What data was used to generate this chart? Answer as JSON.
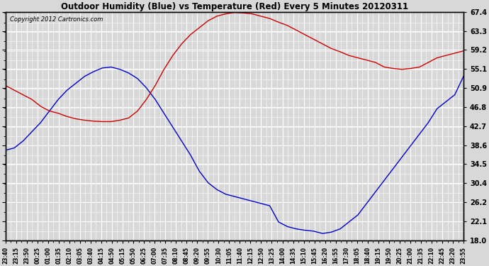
{
  "title": "Outdoor Humidity (Blue) vs Temperature (Red) Every 5 Minutes 20120311",
  "copyright": "Copyright 2012 Cartronics.com",
  "y_ticks": [
    18.0,
    22.1,
    26.2,
    30.4,
    34.5,
    38.6,
    42.7,
    46.8,
    50.9,
    55.1,
    59.2,
    63.3,
    67.4
  ],
  "y_min": 18.0,
  "y_max": 67.4,
  "background_color": "#d8d8d8",
  "plot_bg_color": "#d8d8d8",
  "humidity_color": "#0000cc",
  "temp_color": "#cc0000",
  "x_labels": [
    "23:40",
    "23:15",
    "23:50",
    "00:25",
    "01:00",
    "01:35",
    "02:10",
    "03:05",
    "03:40",
    "04:15",
    "04:50",
    "05:15",
    "05:50",
    "06:25",
    "07:00",
    "07:35",
    "08:10",
    "08:45",
    "09:20",
    "09:55",
    "10:30",
    "11:05",
    "11:40",
    "12:15",
    "12:50",
    "13:25",
    "14:00",
    "14:35",
    "15:10",
    "15:45",
    "16:20",
    "16:55",
    "17:30",
    "18:05",
    "18:40",
    "19:15",
    "19:50",
    "20:25",
    "21:00",
    "21:35",
    "22:10",
    "22:45",
    "23:20",
    "23:55"
  ],
  "humidity_data": [
    37.5,
    38.0,
    39.5,
    41.5,
    43.5,
    46.0,
    48.5,
    50.5,
    52.0,
    53.5,
    54.5,
    55.3,
    55.5,
    55.0,
    54.2,
    53.0,
    51.0,
    48.5,
    45.5,
    42.5,
    39.5,
    36.5,
    33.0,
    30.5,
    29.0,
    28.0,
    27.5,
    27.0,
    26.5,
    26.0,
    25.5,
    22.0,
    21.0,
    20.5,
    20.2,
    20.0,
    19.5,
    19.8,
    20.5,
    22.0,
    23.5,
    26.0,
    28.5,
    31.0,
    33.5,
    36.0,
    38.5,
    41.0,
    43.5,
    46.5,
    48.0,
    49.5,
    53.5
  ],
  "temp_data": [
    51.5,
    50.5,
    49.5,
    48.5,
    47.0,
    46.0,
    45.5,
    44.8,
    44.3,
    44.0,
    43.8,
    43.7,
    43.7,
    44.0,
    44.5,
    46.0,
    48.5,
    51.5,
    55.0,
    58.0,
    60.5,
    62.5,
    64.0,
    65.5,
    66.5,
    67.0,
    67.3,
    67.2,
    67.0,
    66.5,
    66.0,
    65.2,
    64.5,
    63.5,
    62.5,
    61.5,
    60.5,
    59.5,
    58.8,
    58.0,
    57.5,
    57.0,
    56.5,
    55.5,
    55.2,
    55.0,
    55.2,
    55.5,
    56.5,
    57.5,
    58.0,
    58.5,
    59.0
  ],
  "n_points": 53
}
